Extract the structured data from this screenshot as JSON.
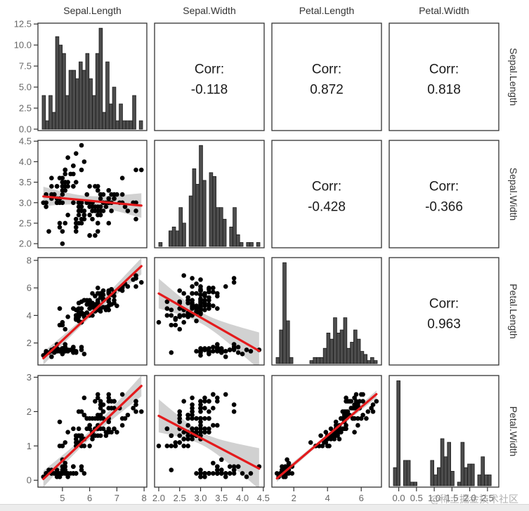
{
  "chart_data": {
    "type": "scatter",
    "title": "",
    "variables": [
      "Sepal.Length",
      "Sepal.Width",
      "Petal.Length",
      "Petal.Width"
    ],
    "axes": {
      "Sepal.Length": {
        "range": [
          4.1,
          8.1
        ],
        "ticks": [
          5,
          6,
          7,
          8
        ],
        "tick_labels": [
          "5",
          "6",
          "7",
          "8"
        ]
      },
      "Sepal.Width": {
        "range": [
          1.9,
          4.52
        ],
        "ticks": [
          2.0,
          2.5,
          3.0,
          3.5,
          4.0,
          4.5
        ],
        "tick_labels": [
          "2.0",
          "2.5",
          "3.0",
          "3.5",
          "4.0",
          "4.5"
        ]
      },
      "Petal.Length": {
        "range": [
          0.7,
          7.2
        ],
        "ticks": [
          2,
          4,
          6
        ],
        "tick_labels": [
          "2",
          "4",
          "6"
        ],
        "y_ticks": [
          2,
          4,
          6,
          8
        ],
        "y_tick_labels": [
          "2",
          "4",
          "6",
          "8"
        ],
        "y_range": [
          0.4,
          8.2
        ]
      },
      "Petal.Width": {
        "range": [
          -0.15,
          2.7
        ],
        "ticks": [
          0.0,
          0.5,
          1.0,
          1.5,
          2.0,
          2.5
        ],
        "tick_labels": [
          "0.0",
          "0.5",
          "1.0",
          "1.5",
          "2.0",
          "2.5"
        ],
        "y_ticks": [
          0,
          1,
          2,
          3
        ],
        "y_tick_labels": [
          "0",
          "1",
          "2",
          "3"
        ],
        "y_range": [
          -0.2,
          3.05
        ]
      }
    },
    "first_hist_y_axis": {
      "range": [
        0,
        12.6
      ],
      "ticks": [
        0,
        2.5,
        5,
        7.5,
        10,
        12.5
      ],
      "tick_labels": [
        "0.0",
        "2.5",
        "5.0",
        "7.5",
        "10.0",
        "12.5"
      ]
    },
    "correlations": [
      {
        "row": "Sepal.Length",
        "col": "Sepal.Width",
        "label": "Corr:",
        "value": "-0.118"
      },
      {
        "row": "Sepal.Length",
        "col": "Petal.Length",
        "label": "Corr:",
        "value": "0.872"
      },
      {
        "row": "Sepal.Length",
        "col": "Petal.Width",
        "label": "Corr:",
        "value": "0.818"
      },
      {
        "row": "Sepal.Width",
        "col": "Petal.Length",
        "label": "Corr:",
        "value": "-0.428"
      },
      {
        "row": "Sepal.Width",
        "col": "Petal.Width",
        "label": "Corr:",
        "value": "-0.366"
      },
      {
        "row": "Petal.Length",
        "col": "Petal.Width",
        "label": "Corr:",
        "value": "0.963"
      }
    ],
    "histograms": {
      "Sepal.Length": [
        4,
        1,
        4,
        2,
        11,
        10,
        9,
        4,
        7,
        7,
        6,
        8,
        7,
        9,
        6,
        4,
        9,
        12,
        2,
        8,
        3,
        5,
        1,
        3,
        1,
        1,
        1,
        4,
        0,
        1
      ],
      "Sepal.Width": [
        1,
        0,
        0,
        4,
        5,
        4,
        10,
        6,
        0,
        13,
        20,
        16,
        26,
        17,
        0,
        19,
        18,
        10,
        10,
        7,
        0,
        5,
        10,
        3,
        1,
        0,
        1,
        1,
        0,
        1
      ],
      "Petal.Length": [
        2,
        11,
        33,
        14,
        2,
        0,
        0,
        0,
        0,
        0,
        1,
        2,
        2,
        2,
        5,
        10,
        8,
        15,
        10,
        11,
        15,
        5,
        7,
        11,
        8,
        4,
        3,
        1,
        2,
        1
      ],
      "Petal.Width": [
        5,
        29,
        0,
        7,
        7,
        1,
        1,
        0,
        0,
        0,
        0,
        7,
        3,
        5,
        13,
        8,
        12,
        4,
        0,
        1,
        12,
        5,
        6,
        6,
        0,
        3,
        8,
        3,
        3,
        0
      ]
    },
    "regression_color": "#e41a1c",
    "ci_color": "#bdbdbd",
    "bar_fill": "#4d4d4d",
    "point_color": "#000000",
    "points": {
      "Sepal.Length": [
        5.1,
        4.9,
        4.7,
        4.6,
        5.0,
        5.4,
        4.6,
        5.0,
        4.4,
        4.9,
        5.4,
        4.8,
        4.8,
        4.3,
        5.8,
        5.7,
        5.4,
        5.1,
        5.7,
        5.1,
        5.4,
        5.1,
        4.6,
        5.1,
        4.8,
        5.0,
        5.0,
        5.2,
        5.2,
        4.7,
        4.8,
        5.4,
        5.2,
        5.5,
        4.9,
        5.0,
        5.5,
        4.9,
        4.4,
        5.1,
        5.0,
        4.5,
        4.4,
        5.0,
        5.1,
        4.8,
        5.1,
        4.6,
        5.3,
        5.0,
        7.0,
        6.4,
        6.9,
        5.5,
        6.5,
        5.7,
        6.3,
        4.9,
        6.6,
        5.2,
        5.0,
        5.9,
        6.0,
        6.1,
        5.6,
        6.7,
        5.6,
        5.8,
        6.2,
        5.6,
        5.9,
        6.1,
        6.3,
        6.1,
        6.4,
        6.6,
        6.8,
        6.7,
        6.0,
        5.7,
        5.5,
        5.5,
        5.8,
        6.0,
        5.4,
        6.0,
        6.7,
        6.3,
        5.6,
        5.5,
        5.5,
        6.1,
        5.8,
        5.0,
        5.6,
        5.7,
        5.7,
        6.2,
        5.1,
        5.7,
        6.3,
        5.8,
        7.1,
        6.3,
        6.5,
        7.6,
        4.9,
        7.3,
        6.7,
        7.2,
        6.5,
        6.4,
        6.8,
        5.7,
        5.8,
        6.4,
        6.5,
        7.7,
        7.7,
        6.0,
        6.9,
        5.6,
        7.7,
        6.3,
        6.7,
        7.2,
        6.2,
        6.1,
        6.4,
        7.2,
        7.4,
        7.9,
        6.4,
        6.3,
        6.1,
        7.7,
        6.3,
        6.4,
        6.0,
        6.9,
        6.7,
        6.9,
        5.8,
        6.8,
        6.7,
        6.7,
        6.3,
        6.5,
        6.2,
        5.9
      ],
      "Sepal.Width": [
        3.5,
        3.0,
        3.2,
        3.1,
        3.6,
        3.9,
        3.4,
        3.4,
        2.9,
        3.1,
        3.7,
        3.4,
        3.0,
        3.0,
        4.0,
        4.4,
        3.9,
        3.5,
        3.8,
        3.8,
        3.4,
        3.7,
        3.6,
        3.3,
        3.4,
        3.0,
        3.4,
        3.5,
        3.4,
        3.2,
        3.1,
        3.4,
        4.1,
        4.2,
        3.1,
        3.2,
        3.5,
        3.6,
        3.0,
        3.4,
        3.5,
        2.3,
        3.2,
        3.5,
        3.8,
        3.0,
        3.8,
        3.2,
        3.7,
        3.3,
        3.2,
        3.2,
        3.1,
        2.3,
        2.8,
        2.8,
        3.3,
        2.4,
        2.9,
        2.7,
        2.0,
        3.0,
        2.2,
        2.9,
        2.9,
        3.1,
        3.0,
        2.7,
        2.2,
        2.5,
        3.2,
        2.8,
        2.5,
        2.8,
        2.9,
        3.0,
        2.8,
        3.0,
        2.9,
        2.6,
        2.4,
        2.4,
        2.7,
        2.7,
        3.0,
        3.4,
        3.1,
        2.3,
        3.0,
        2.5,
        2.6,
        3.0,
        2.6,
        2.3,
        2.7,
        3.0,
        2.9,
        2.9,
        2.5,
        2.8,
        3.3,
        2.7,
        3.0,
        2.9,
        3.0,
        3.0,
        2.5,
        2.9,
        2.5,
        3.6,
        3.2,
        2.7,
        3.0,
        2.5,
        2.8,
        3.2,
        3.0,
        3.8,
        2.6,
        2.2,
        3.2,
        2.8,
        2.8,
        2.7,
        3.3,
        3.2,
        2.8,
        3.0,
        2.8,
        3.0,
        2.8,
        3.8,
        2.8,
        2.8,
        2.6,
        3.0,
        3.4,
        3.1,
        3.0,
        3.1,
        3.1,
        3.1,
        2.7,
        3.2,
        3.3,
        3.0,
        2.5,
        3.0,
        3.4,
        3.0
      ],
      "Petal.Length": [
        1.4,
        1.4,
        1.3,
        1.5,
        1.4,
        1.7,
        1.4,
        1.5,
        1.4,
        1.5,
        1.5,
        1.6,
        1.4,
        1.1,
        1.2,
        1.5,
        1.3,
        1.4,
        1.7,
        1.5,
        1.7,
        1.5,
        1.0,
        1.7,
        1.9,
        1.6,
        1.6,
        1.5,
        1.4,
        1.6,
        1.6,
        1.5,
        1.5,
        1.4,
        1.5,
        1.2,
        1.3,
        1.4,
        1.3,
        1.5,
        1.3,
        1.3,
        1.3,
        1.6,
        1.9,
        1.4,
        1.6,
        1.4,
        1.5,
        1.4,
        4.7,
        4.5,
        4.9,
        4.0,
        4.6,
        4.5,
        4.7,
        3.3,
        4.6,
        3.9,
        3.5,
        4.2,
        4.0,
        4.7,
        3.6,
        4.4,
        4.5,
        4.1,
        4.5,
        3.9,
        4.8,
        4.0,
        4.9,
        4.7,
        4.3,
        4.4,
        4.8,
        5.0,
        4.5,
        3.5,
        3.8,
        3.7,
        3.9,
        5.1,
        4.5,
        4.5,
        4.7,
        4.4,
        4.1,
        4.0,
        4.4,
        4.6,
        4.0,
        3.3,
        4.2,
        4.2,
        4.2,
        4.3,
        3.0,
        4.1,
        6.0,
        5.1,
        5.9,
        5.6,
        5.8,
        6.6,
        4.5,
        6.3,
        5.8,
        6.1,
        5.1,
        5.3,
        5.5,
        5.0,
        5.1,
        5.3,
        5.5,
        6.7,
        6.9,
        5.0,
        5.7,
        4.9,
        6.7,
        4.9,
        5.7,
        6.0,
        4.8,
        4.9,
        5.6,
        5.8,
        6.1,
        6.4,
        5.6,
        5.1,
        5.6,
        6.1,
        5.6,
        5.5,
        4.8,
        5.4,
        5.6,
        5.1,
        5.1,
        5.9,
        5.7,
        5.2,
        5.0,
        5.2,
        5.4,
        5.1
      ],
      "Petal.Width": [
        0.2,
        0.2,
        0.2,
        0.2,
        0.2,
        0.4,
        0.3,
        0.2,
        0.2,
        0.1,
        0.2,
        0.2,
        0.1,
        0.1,
        0.2,
        0.4,
        0.4,
        0.3,
        0.3,
        0.3,
        0.2,
        0.4,
        0.2,
        0.5,
        0.2,
        0.2,
        0.4,
        0.2,
        0.2,
        0.2,
        0.2,
        0.4,
        0.1,
        0.2,
        0.2,
        0.2,
        0.2,
        0.1,
        0.2,
        0.2,
        0.3,
        0.3,
        0.2,
        0.6,
        0.4,
        0.3,
        0.2,
        0.2,
        0.2,
        0.2,
        1.4,
        1.5,
        1.5,
        1.3,
        1.5,
        1.3,
        1.6,
        1.0,
        1.3,
        1.4,
        1.0,
        1.5,
        1.0,
        1.4,
        1.3,
        1.4,
        1.5,
        1.0,
        1.5,
        1.1,
        1.8,
        1.3,
        1.5,
        1.2,
        1.3,
        1.4,
        1.4,
        1.7,
        1.5,
        1.0,
        1.1,
        1.0,
        1.2,
        1.6,
        1.5,
        1.6,
        1.5,
        1.3,
        1.3,
        1.3,
        1.2,
        1.4,
        1.2,
        1.0,
        1.3,
        1.2,
        1.3,
        1.3,
        1.1,
        1.3,
        2.5,
        1.9,
        2.1,
        1.8,
        2.2,
        2.1,
        1.7,
        1.8,
        1.8,
        2.5,
        2.0,
        1.9,
        2.1,
        2.0,
        2.4,
        2.3,
        1.8,
        2.2,
        2.3,
        1.5,
        2.3,
        2.0,
        2.0,
        1.8,
        2.1,
        1.8,
        1.8,
        1.8,
        2.1,
        1.6,
        1.9,
        2.0,
        2.2,
        1.5,
        1.4,
        2.3,
        2.4,
        1.8,
        1.8,
        2.1,
        2.4,
        2.3,
        1.9,
        2.3,
        2.5,
        2.3,
        1.9,
        2.0,
        2.3,
        1.8
      ]
    }
  },
  "watermark": "@稀土掘金技术社区"
}
